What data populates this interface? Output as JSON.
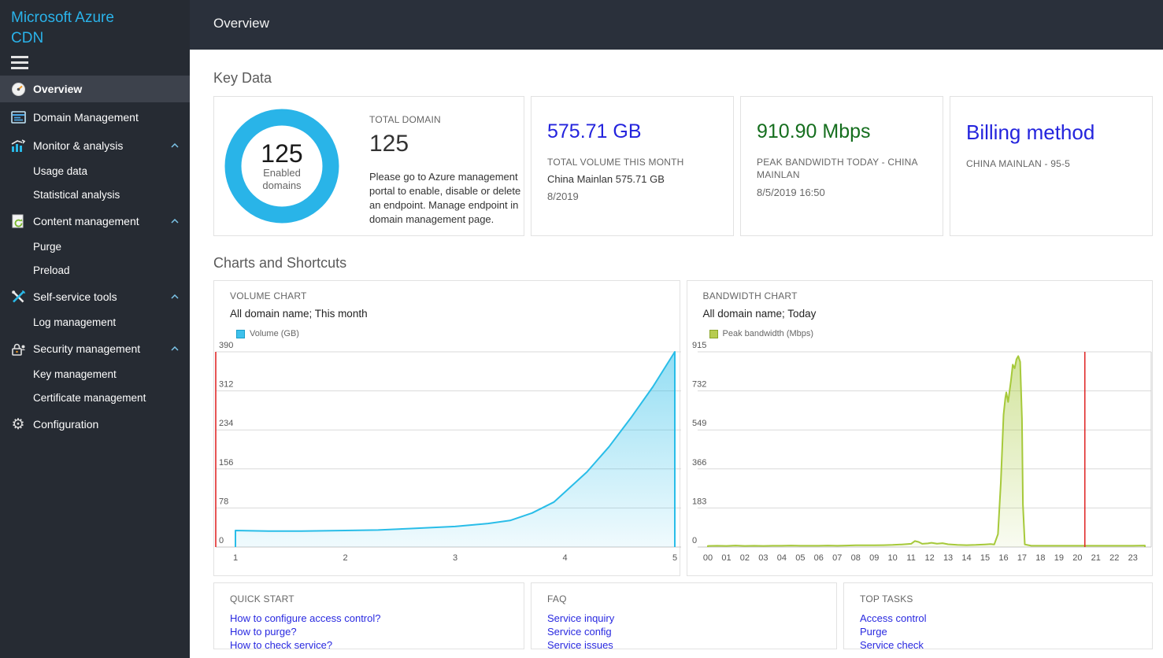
{
  "sidebar": {
    "brand_line1": "Microsoft Azure",
    "brand_line2": "CDN",
    "items": [
      {
        "label": "Overview",
        "icon": "gauge-icon",
        "active": true
      },
      {
        "label": "Domain Management",
        "icon": "domain-icon"
      },
      {
        "label": "Monitor & analysis",
        "icon": "monitor-icon",
        "chevron": true
      },
      {
        "label": "Usage data",
        "indent": true
      },
      {
        "label": "Statistical analysis",
        "indent": true
      },
      {
        "label": "Content management",
        "icon": "content-icon",
        "chevron": true
      },
      {
        "label": "Purge",
        "indent": true
      },
      {
        "label": "Preload",
        "indent": true
      },
      {
        "label": "Self-service tools",
        "icon": "tools-icon",
        "chevron": true
      },
      {
        "label": "Log management",
        "indent": true
      },
      {
        "label": "Security management",
        "icon": "security-icon",
        "chevron": true
      },
      {
        "label": "Key management",
        "indent": true
      },
      {
        "label": "Certificate management",
        "indent": true
      },
      {
        "label": "Configuration",
        "icon": "gear-icon"
      }
    ]
  },
  "header": {
    "title": "Overview"
  },
  "key_data": {
    "section_title": "Key Data",
    "domain_card": {
      "donut_value": "125",
      "donut_label_line1": "Enabled",
      "donut_label_line2": "domains",
      "label": "TOTAL DOMAIN",
      "value": "125",
      "description": "Please go to Azure management portal to enable, disable or delete an endpoint. Manage endpoint in domain management page."
    },
    "volume_card": {
      "value": "575.71 GB",
      "label": "TOTAL VOLUME THIS MONTH",
      "detail": "China Mainlan 575.71 GB",
      "period": "8/2019"
    },
    "bandwidth_card": {
      "value": "910.90 Mbps",
      "label": "PEAK BANDWIDTH TODAY - CHINA MAINLAN",
      "timestamp": "8/5/2019 16:50"
    },
    "billing_card": {
      "value": "Billing method",
      "label": "CHINA MAINLAN - 95-5"
    }
  },
  "charts_section_title": "Charts and Shortcuts",
  "chart_data": [
    {
      "type": "area",
      "title": "VOLUME CHART",
      "subtitle": "All domain name; This month",
      "legend": [
        "Volume (GB)"
      ],
      "legend_position": "top-left",
      "grid": true,
      "xlim": [
        1,
        5
      ],
      "xticks": [
        "1",
        "2",
        "3",
        "4",
        "5"
      ],
      "ylim": [
        0,
        390
      ],
      "yticks": [
        "0",
        "78",
        "156",
        "234",
        "312",
        "390"
      ],
      "line_color": "#29bde8",
      "left_axis_color": "#e02a2a",
      "series": [
        {
          "name": "Volume (GB)",
          "points": [
            [
              1,
              33
            ],
            [
              1.3,
              32
            ],
            [
              1.6,
              32
            ],
            [
              2,
              33
            ],
            [
              2.3,
              34
            ],
            [
              2.6,
              37
            ],
            [
              3,
              41
            ],
            [
              3.3,
              47
            ],
            [
              3.5,
              53
            ],
            [
              3.7,
              68
            ],
            [
              3.9,
              90
            ],
            [
              4,
              110
            ],
            [
              4.2,
              150
            ],
            [
              4.4,
              200
            ],
            [
              4.6,
              258
            ],
            [
              4.8,
              320
            ],
            [
              5,
              390
            ]
          ]
        }
      ]
    },
    {
      "type": "area",
      "title": "BANDWIDTH CHART",
      "subtitle": "All domain name; Today",
      "legend": [
        "Peak bandwidth (Mbps)"
      ],
      "legend_position": "top-left",
      "grid": true,
      "xlim": [
        0,
        23.65
      ],
      "xticks": [
        "00",
        "01",
        "02",
        "03",
        "04",
        "05",
        "06",
        "07",
        "08",
        "09",
        "10",
        "11",
        "12",
        "13",
        "14",
        "15",
        "16",
        "17",
        "18",
        "19",
        "20",
        "21",
        "22",
        "23"
      ],
      "ylim": [
        0,
        915
      ],
      "yticks": [
        "0",
        "183",
        "366",
        "549",
        "732",
        "915"
      ],
      "line_color": "#a6c93a",
      "right_edge_color": "#cfcfcf",
      "marker_line": {
        "x": 20.4,
        "color": "#e02a2a"
      },
      "series": [
        {
          "name": "Peak bandwidth (Mbps)",
          "points": [
            [
              0,
              5
            ],
            [
              0.5,
              6
            ],
            [
              1,
              5
            ],
            [
              1.5,
              7
            ],
            [
              2,
              5
            ],
            [
              2.5,
              6
            ],
            [
              3,
              5
            ],
            [
              3.5,
              6
            ],
            [
              4,
              6
            ],
            [
              4.5,
              7
            ],
            [
              5,
              6
            ],
            [
              5.5,
              6
            ],
            [
              6,
              6
            ],
            [
              6.5,
              7
            ],
            [
              7,
              6
            ],
            [
              7.5,
              7
            ],
            [
              8,
              8
            ],
            [
              8.5,
              8
            ],
            [
              9,
              8
            ],
            [
              9.5,
              9
            ],
            [
              10,
              10
            ],
            [
              10.5,
              12
            ],
            [
              11,
              15
            ],
            [
              11.2,
              28
            ],
            [
              11.4,
              24
            ],
            [
              11.6,
              15
            ],
            [
              11.9,
              17
            ],
            [
              12.1,
              20
            ],
            [
              12.4,
              16
            ],
            [
              12.7,
              18
            ],
            [
              13,
              13
            ],
            [
              13.5,
              10
            ],
            [
              14,
              9
            ],
            [
              14.5,
              10
            ],
            [
              15,
              12
            ],
            [
              15.3,
              14
            ],
            [
              15.5,
              12
            ],
            [
              15.7,
              60
            ],
            [
              15.85,
              300
            ],
            [
              16,
              620
            ],
            [
              16.1,
              700
            ],
            [
              16.15,
              725
            ],
            [
              16.25,
              680
            ],
            [
              16.4,
              780
            ],
            [
              16.5,
              855
            ],
            [
              16.6,
              838
            ],
            [
              16.7,
              880
            ],
            [
              16.8,
              895
            ],
            [
              16.9,
              868
            ],
            [
              17,
              600
            ],
            [
              17.05,
              200
            ],
            [
              17.15,
              12
            ],
            [
              17.5,
              6
            ],
            [
              18,
              6
            ],
            [
              18.5,
              6
            ],
            [
              19,
              6
            ],
            [
              19.5,
              6
            ],
            [
              20,
              6
            ],
            [
              20.5,
              6
            ],
            [
              21,
              6
            ],
            [
              21.5,
              6
            ],
            [
              22,
              6
            ],
            [
              22.5,
              6
            ],
            [
              23,
              6
            ],
            [
              23.65,
              7
            ]
          ]
        }
      ]
    }
  ],
  "shortcuts": {
    "quick_start": {
      "title": "QUICK START",
      "links": [
        "How to configure access control?",
        "How to purge?",
        "How to check service?"
      ]
    },
    "faq": {
      "title": "FAQ",
      "links": [
        "Service inquiry",
        "Service config",
        "Service issues"
      ]
    },
    "top_tasks": {
      "title": "TOP TASKS",
      "links": [
        "Access control",
        "Purge",
        "Service check"
      ]
    }
  },
  "colors": {
    "brand_cyan": "#2ab3ea",
    "sidebar_bg": "#262b33",
    "sidebar_active_bg": "#3d424c",
    "topbar_bg": "#2a303b",
    "donut_ring": "#29b4e8",
    "value_blue": "#2424dd",
    "value_green": "#156e1e",
    "link_blue": "#2929e0",
    "chart_cyan": "#29bde8",
    "chart_green": "#a6c93a",
    "axis_red": "#e02a2a"
  }
}
